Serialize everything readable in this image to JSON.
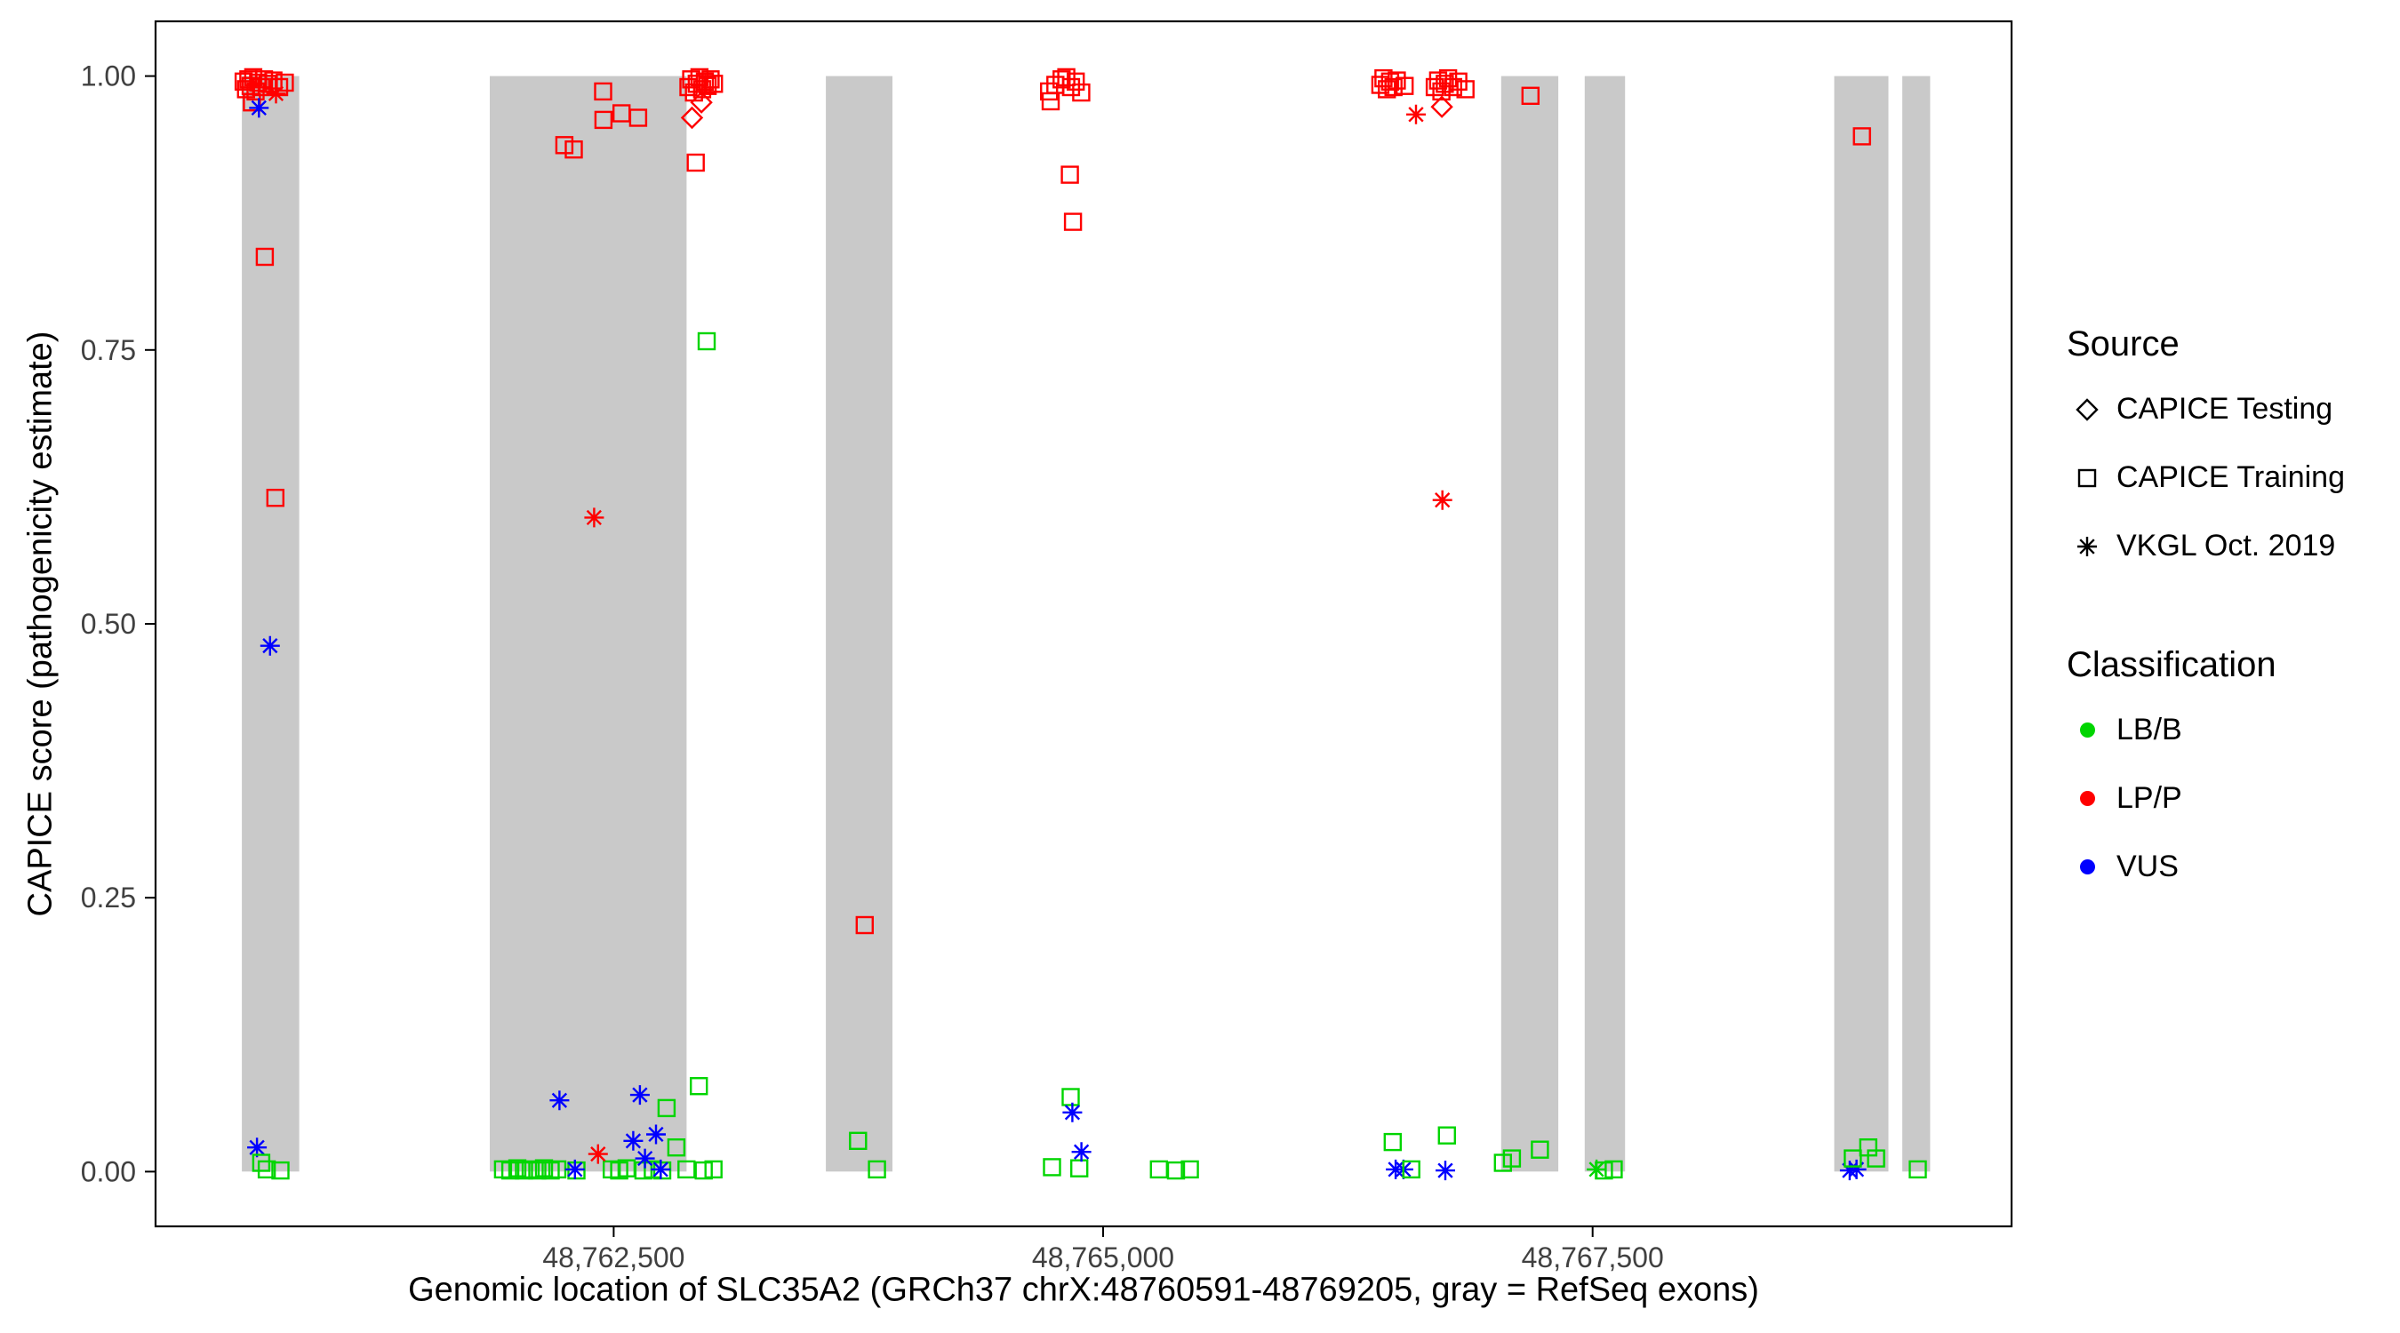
{
  "figure": {
    "x_axis_title": "Genomic location of SLC35A2 (GRCh37 chrX:48760591-48769205, gray = RefSeq exons)",
    "y_axis_title": "CAPICE score (pathogenicity estimate)"
  },
  "legend": {
    "source": {
      "title": "Source",
      "items": [
        {
          "label": "CAPICE Testing",
          "marker": "diamond"
        },
        {
          "label": "CAPICE Training",
          "marker": "square"
        },
        {
          "label": "VKGL Oct. 2019",
          "marker": "asterisk"
        }
      ]
    },
    "classification": {
      "title": "Classification",
      "items": [
        {
          "label": "LB/B",
          "color": "#00D500"
        },
        {
          "label": "LP/P",
          "color": "#FF0000"
        },
        {
          "label": "VUS",
          "color": "#0000FF"
        }
      ]
    }
  },
  "chart_data": {
    "type": "scatter",
    "title": "",
    "xlabel": "Genomic location of SLC35A2 (GRCh37 chrX:48760591-48769205, gray = RefSeq exons)",
    "ylabel": "CAPICE score (pathogenicity estimate)",
    "xlim": [
      48760160,
      48769640
    ],
    "ylim": [
      -0.05,
      1.05
    ],
    "x_ticks": [
      {
        "value": 48762500,
        "label": "48,762,500"
      },
      {
        "value": 48765000,
        "label": "48,765,000"
      },
      {
        "value": 48767500,
        "label": "48,767,500"
      }
    ],
    "y_ticks": [
      {
        "value": 0.0,
        "label": "0.00"
      },
      {
        "value": 0.25,
        "label": "0.25"
      },
      {
        "value": 0.5,
        "label": "0.50"
      },
      {
        "value": 0.75,
        "label": "0.75"
      },
      {
        "value": 1.0,
        "label": "1.00"
      }
    ],
    "exon_color": "#C9C9C9",
    "colors": {
      "LB/B": "#00D500",
      "LP/P": "#FF0000",
      "VUS": "#0000FF"
    },
    "exons": [
      [
        48760601,
        48760894
      ],
      [
        48761867,
        48762872
      ],
      [
        48763584,
        48763924
      ],
      [
        48767033,
        48767325
      ],
      [
        48767460,
        48767666
      ],
      [
        48768734,
        48769011
      ],
      [
        48769082,
        48769224
      ]
    ],
    "points": [
      [
        48760610,
        0.995,
        "square",
        "LP/P"
      ],
      [
        48760622,
        0.988,
        "square",
        "LP/P"
      ],
      [
        48760634,
        0.997,
        "square",
        "LP/P"
      ],
      [
        48760646,
        0.991,
        "square",
        "LP/P"
      ],
      [
        48760659,
        0.999,
        "square",
        "LP/P"
      ],
      [
        48760671,
        0.986,
        "square",
        "LP/P"
      ],
      [
        48760684,
        0.994,
        "square",
        "LP/P"
      ],
      [
        48760699,
        0.99,
        "square",
        "LP/P"
      ],
      [
        48760714,
        0.997,
        "square",
        "LP/P"
      ],
      [
        48760652,
        0.976,
        "square",
        "LP/P"
      ],
      [
        48760733,
        0.993,
        "square",
        "LP/P"
      ],
      [
        48760762,
        0.996,
        "square",
        "LP/P"
      ],
      [
        48760791,
        0.99,
        "square",
        "LP/P"
      ],
      [
        48760820,
        0.994,
        "square",
        "LP/P"
      ],
      [
        48760775,
        0.984,
        "asterisk",
        "LP/P"
      ],
      [
        48760688,
        0.971,
        "asterisk",
        "VUS"
      ],
      [
        48760718,
        0.835,
        "square",
        "LP/P"
      ],
      [
        48760772,
        0.615,
        "square",
        "LP/P"
      ],
      [
        48760745,
        0.48,
        "asterisk",
        "VUS"
      ],
      [
        48760678,
        0.022,
        "asterisk",
        "VUS"
      ],
      [
        48760700,
        0.008,
        "square",
        "LB/B"
      ],
      [
        48760728,
        0.002,
        "square",
        "LB/B"
      ],
      [
        48760798,
        0.001,
        "square",
        "LB/B"
      ],
      [
        48762248,
        0.937,
        "square",
        "LP/P"
      ],
      [
        48762296,
        0.933,
        "square",
        "LP/P"
      ],
      [
        48762446,
        0.986,
        "square",
        "LP/P"
      ],
      [
        48762448,
        0.96,
        "square",
        "LP/P"
      ],
      [
        48762540,
        0.966,
        "square",
        "LP/P"
      ],
      [
        48762625,
        0.962,
        "square",
        "LP/P"
      ],
      [
        48762400,
        0.597,
        "asterisk",
        "LP/P"
      ],
      [
        48761935,
        0.002,
        "square",
        "LB/B"
      ],
      [
        48761972,
        0.001,
        "square",
        "LB/B"
      ],
      [
        48762008,
        0.003,
        "square",
        "LB/B"
      ],
      [
        48762042,
        0.001,
        "square",
        "LB/B"
      ],
      [
        48762076,
        0.002,
        "square",
        "LB/B"
      ],
      [
        48762110,
        0.001,
        "square",
        "LB/B"
      ],
      [
        48762144,
        0.003,
        "square",
        "LB/B"
      ],
      [
        48762178,
        0.001,
        "square",
        "LB/B"
      ],
      [
        48762212,
        0.002,
        "square",
        "LB/B"
      ],
      [
        48762310,
        0.001,
        "square",
        "LB/B"
      ],
      [
        48762490,
        0.002,
        "square",
        "LB/B"
      ],
      [
        48762528,
        0.001,
        "square",
        "LB/B"
      ],
      [
        48762566,
        0.003,
        "square",
        "LB/B"
      ],
      [
        48762652,
        0.001,
        "square",
        "LB/B"
      ],
      [
        48762700,
        0.002,
        "square",
        "LB/B"
      ],
      [
        48762748,
        0.001,
        "square",
        "LB/B"
      ],
      [
        48762872,
        0.002,
        "square",
        "LB/B"
      ],
      [
        48762960,
        0.001,
        "square",
        "LB/B"
      ],
      [
        48763010,
        0.002,
        "square",
        "LB/B"
      ],
      [
        48762770,
        0.058,
        "square",
        "LB/B"
      ],
      [
        48762935,
        0.078,
        "square",
        "LB/B"
      ],
      [
        48762820,
        0.022,
        "square",
        "LB/B"
      ],
      [
        48762223,
        0.065,
        "asterisk",
        "VUS"
      ],
      [
        48762634,
        0.07,
        "asterisk",
        "VUS"
      ],
      [
        48762600,
        0.028,
        "asterisk",
        "VUS"
      ],
      [
        48762716,
        0.034,
        "asterisk",
        "VUS"
      ],
      [
        48762302,
        0.002,
        "asterisk",
        "VUS"
      ],
      [
        48762740,
        0.002,
        "asterisk",
        "VUS"
      ],
      [
        48762660,
        0.012,
        "asterisk",
        "VUS"
      ],
      [
        48762420,
        0.016,
        "asterisk",
        "LP/P"
      ],
      [
        48762882,
        0.99,
        "square",
        "LP/P"
      ],
      [
        48762896,
        0.997,
        "square",
        "LP/P"
      ],
      [
        48762910,
        0.985,
        "square",
        "LP/P"
      ],
      [
        48762924,
        0.993,
        "square",
        "LP/P"
      ],
      [
        48762938,
        0.999,
        "square",
        "LP/P"
      ],
      [
        48762952,
        0.988,
        "square",
        "LP/P"
      ],
      [
        48762966,
        0.995,
        "square",
        "LP/P"
      ],
      [
        48762980,
        0.991,
        "square",
        "LP/P"
      ],
      [
        48762995,
        0.997,
        "square",
        "LP/P"
      ],
      [
        48763012,
        0.993,
        "square",
        "LP/P"
      ],
      [
        48762900,
        0.962,
        "diamond",
        "LP/P"
      ],
      [
        48762948,
        0.976,
        "diamond",
        "LP/P"
      ],
      [
        48762919,
        0.921,
        "square",
        "LP/P"
      ],
      [
        48762975,
        0.758,
        "square",
        "LB/B"
      ],
      [
        48763782,
        0.225,
        "square",
        "LP/P"
      ],
      [
        48763748,
        0.028,
        "square",
        "LB/B"
      ],
      [
        48763845,
        0.002,
        "square",
        "LB/B"
      ],
      [
        48764724,
        0.986,
        "square",
        "LP/P"
      ],
      [
        48764756,
        0.992,
        "square",
        "LP/P"
      ],
      [
        48764788,
        0.997,
        "square",
        "LP/P"
      ],
      [
        48764812,
        0.999,
        "square",
        "LP/P"
      ],
      [
        48764836,
        0.99,
        "square",
        "LP/P"
      ],
      [
        48764860,
        0.995,
        "square",
        "LP/P"
      ],
      [
        48764888,
        0.985,
        "square",
        "LP/P"
      ],
      [
        48764732,
        0.977,
        "square",
        "LP/P"
      ],
      [
        48764830,
        0.91,
        "square",
        "LP/P"
      ],
      [
        48764846,
        0.867,
        "square",
        "LP/P"
      ],
      [
        48764739,
        0.004,
        "square",
        "LB/B"
      ],
      [
        48764878,
        0.003,
        "square",
        "LB/B"
      ],
      [
        48764834,
        0.068,
        "square",
        "LB/B"
      ],
      [
        48764843,
        0.054,
        "asterisk",
        "VUS"
      ],
      [
        48764889,
        0.018,
        "asterisk",
        "VUS"
      ],
      [
        48765285,
        0.002,
        "square",
        "LB/B"
      ],
      [
        48765372,
        0.001,
        "square",
        "LB/B"
      ],
      [
        48765443,
        0.002,
        "square",
        "LB/B"
      ],
      [
        48766416,
        0.992,
        "square",
        "LP/P"
      ],
      [
        48766432,
        0.998,
        "square",
        "LP/P"
      ],
      [
        48766449,
        0.988,
        "square",
        "LP/P"
      ],
      [
        48766466,
        0.995,
        "square",
        "LP/P"
      ],
      [
        48766483,
        0.99,
        "square",
        "LP/P"
      ],
      [
        48766500,
        0.996,
        "square",
        "LP/P"
      ],
      [
        48766540,
        0.991,
        "square",
        "LP/P"
      ],
      [
        48766694,
        0.99,
        "square",
        "LP/P"
      ],
      [
        48766711,
        0.996,
        "square",
        "LP/P"
      ],
      [
        48766728,
        0.986,
        "square",
        "LP/P"
      ],
      [
        48766745,
        0.993,
        "square",
        "LP/P"
      ],
      [
        48766762,
        0.998,
        "square",
        "LP/P"
      ],
      [
        48766788,
        0.99,
        "square",
        "LP/P"
      ],
      [
        48766814,
        0.995,
        "square",
        "LP/P"
      ],
      [
        48766851,
        0.988,
        "square",
        "LP/P"
      ],
      [
        48766730,
        0.972,
        "diamond",
        "LP/P"
      ],
      [
        48766598,
        0.965,
        "asterisk",
        "LP/P"
      ],
      [
        48766733,
        0.613,
        "asterisk",
        "LP/P"
      ],
      [
        48766479,
        0.027,
        "square",
        "LB/B"
      ],
      [
        48766756,
        0.033,
        "square",
        "LB/B"
      ],
      [
        48766494,
        0.002,
        "asterisk",
        "VUS"
      ],
      [
        48766534,
        0.002,
        "asterisk",
        "VUS"
      ],
      [
        48766748,
        0.001,
        "asterisk",
        "VUS"
      ],
      [
        48766574,
        0.002,
        "square",
        "LB/B"
      ],
      [
        48767183,
        0.982,
        "square",
        "LP/P"
      ],
      [
        48767042,
        0.008,
        "square",
        "LB/B"
      ],
      [
        48767088,
        0.012,
        "square",
        "LB/B"
      ],
      [
        48767231,
        0.02,
        "square",
        "LB/B"
      ],
      [
        48767520,
        0.002,
        "asterisk",
        "LB/B"
      ],
      [
        48767558,
        0.001,
        "square",
        "LB/B"
      ],
      [
        48767608,
        0.002,
        "square",
        "LB/B"
      ],
      [
        48768876,
        0.945,
        "square",
        "LP/P"
      ],
      [
        48768813,
        0.001,
        "asterisk",
        "VUS"
      ],
      [
        48768848,
        0.002,
        "asterisk",
        "VUS"
      ],
      [
        48768829,
        0.012,
        "square",
        "LB/B"
      ],
      [
        48768908,
        0.022,
        "square",
        "LB/B"
      ],
      [
        48768948,
        0.012,
        "square",
        "LB/B"
      ],
      [
        48769161,
        0.002,
        "square",
        "LB/B"
      ]
    ]
  }
}
